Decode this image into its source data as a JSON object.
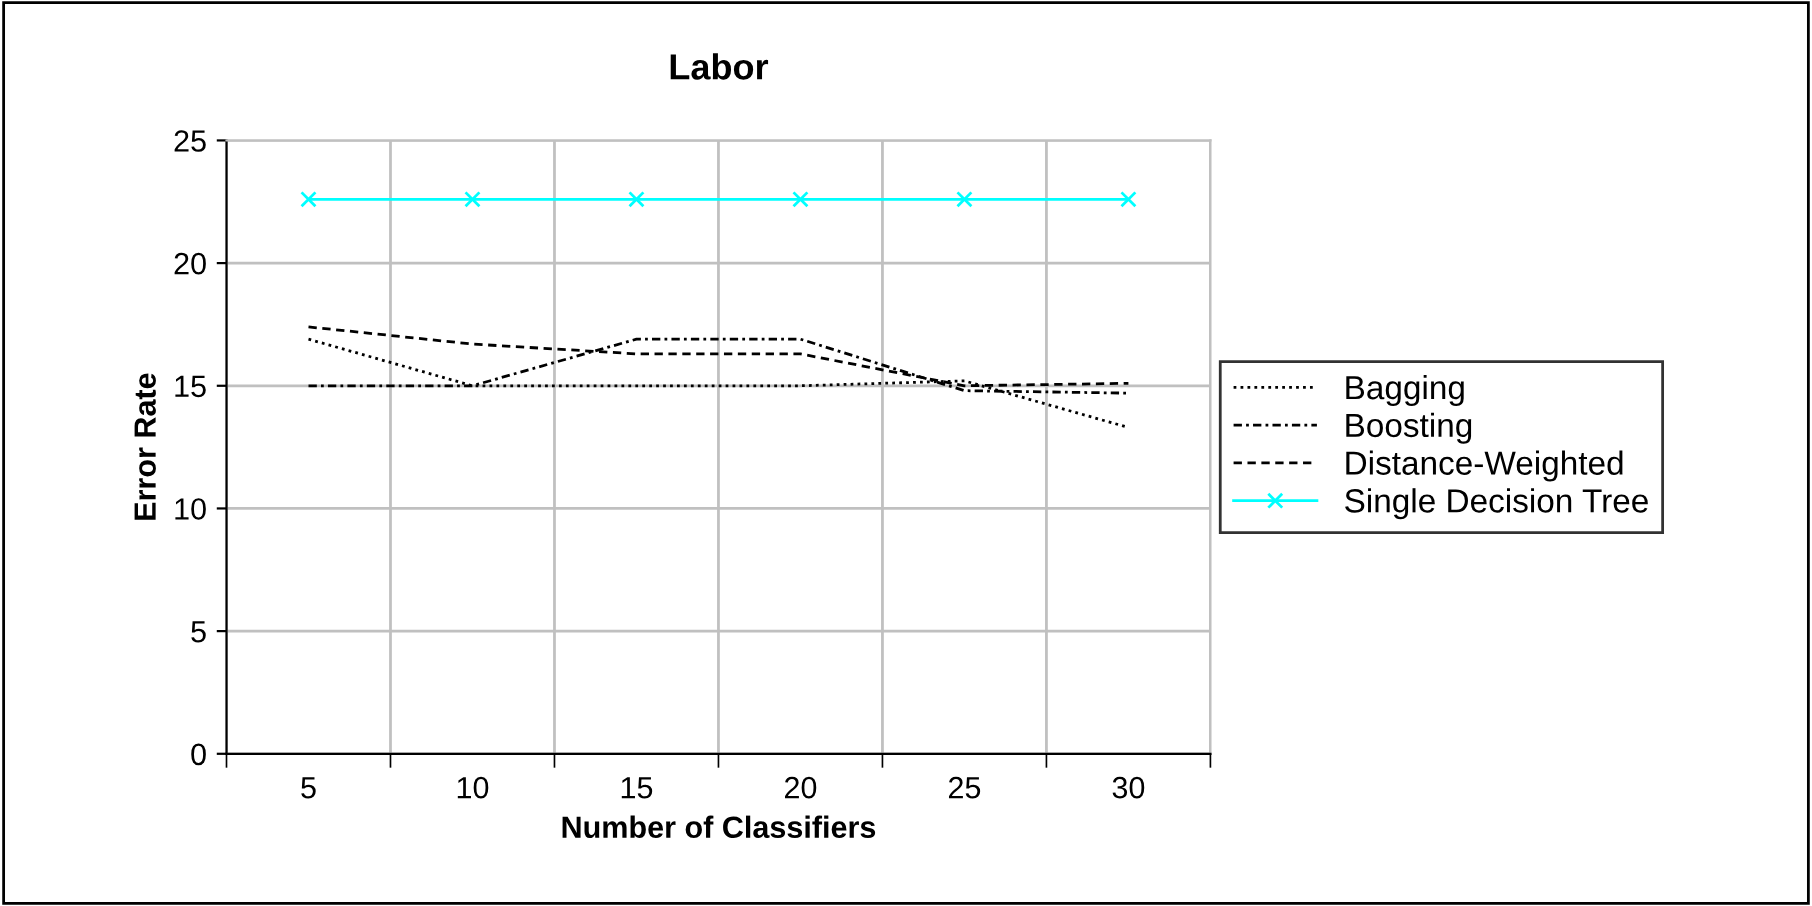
{
  "chart_data": {
    "type": "line",
    "title": "Labor",
    "xlabel": "Number of Classifiers",
    "ylabel": "Error Rate",
    "categories": [
      "5",
      "10",
      "15",
      "20",
      "25",
      "30"
    ],
    "series": [
      {
        "name": "Bagging",
        "color": "#000000",
        "line_style": "dotted",
        "values": [
          16.9,
          15.0,
          15.0,
          15.0,
          15.2,
          13.3
        ]
      },
      {
        "name": "Boosting",
        "color": "#000000",
        "line_style": "dashdot",
        "values": [
          15.0,
          15.0,
          16.9,
          16.9,
          14.8,
          14.7
        ]
      },
      {
        "name": "Distance-Weighted",
        "color": "#000000",
        "line_style": "dashed",
        "values": [
          17.4,
          16.7,
          16.3,
          16.3,
          15.0,
          15.1
        ]
      },
      {
        "name": "Single Decision Tree",
        "color": "#00ffff",
        "line_style": "solid",
        "marker": "cross",
        "values": [
          22.6,
          22.6,
          22.6,
          22.6,
          22.6,
          22.6
        ]
      }
    ],
    "ylim": [
      0,
      25
    ],
    "yticks": [
      0,
      5,
      10,
      15,
      20,
      25
    ],
    "grid": true,
    "legend": "right"
  }
}
